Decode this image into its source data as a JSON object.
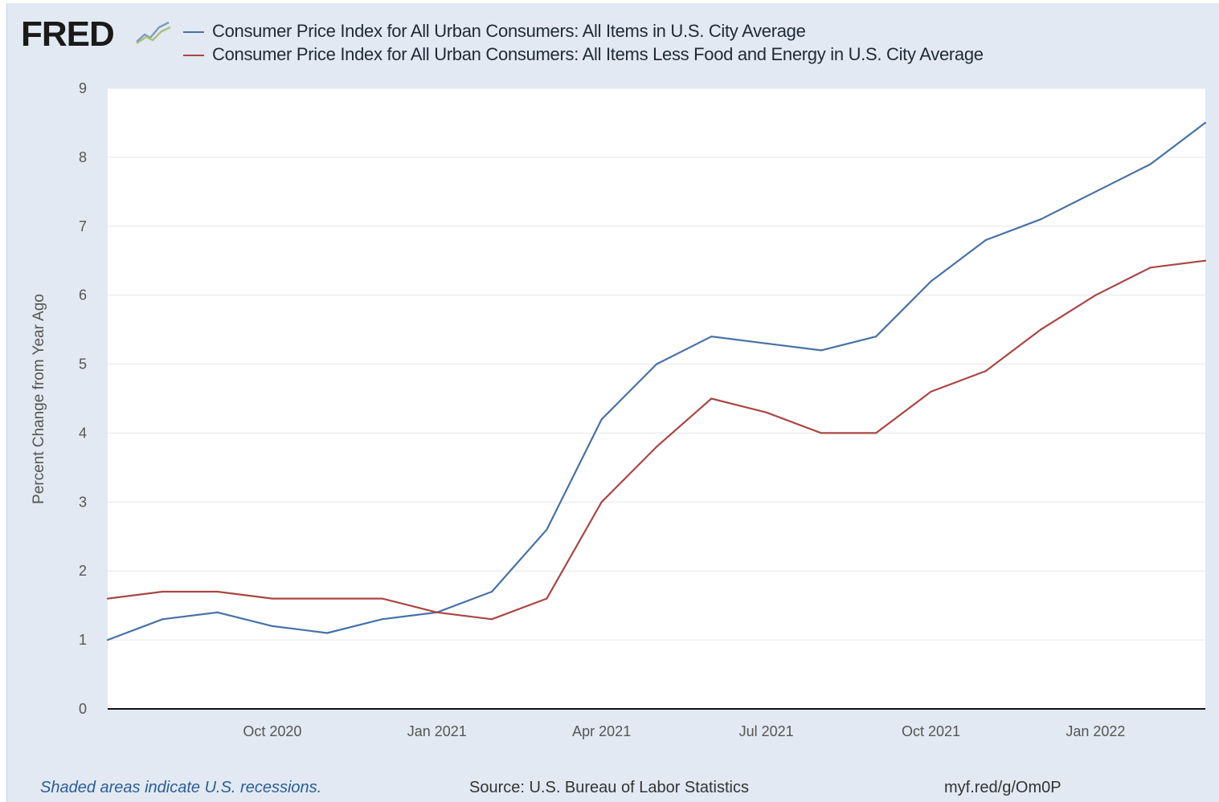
{
  "logo": {
    "text": "FRED",
    "icon": "chart-line-icon"
  },
  "chart_data": {
    "type": "line",
    "title": "",
    "xlabel": "",
    "ylabel": "Percent Change from Year Ago",
    "ylim": [
      0,
      9
    ],
    "xlim": [
      "2020-07",
      "2022-03"
    ],
    "yticks": [
      0,
      1,
      2,
      3,
      4,
      5,
      6,
      7,
      8,
      9
    ],
    "xticks": [
      {
        "label": "Oct 2020",
        "date": "2020-10"
      },
      {
        "label": "Jan 2021",
        "date": "2021-01"
      },
      {
        "label": "Apr 2021",
        "date": "2021-04"
      },
      {
        "label": "Jul 2021",
        "date": "2021-07"
      },
      {
        "label": "Oct 2021",
        "date": "2021-10"
      },
      {
        "label": "Jan 2022",
        "date": "2022-01"
      }
    ],
    "grid": true,
    "legend_position": "top",
    "x": [
      "2020-07",
      "2020-08",
      "2020-09",
      "2020-10",
      "2020-11",
      "2020-12",
      "2021-01",
      "2021-02",
      "2021-03",
      "2021-04",
      "2021-05",
      "2021-06",
      "2021-07",
      "2021-08",
      "2021-09",
      "2021-10",
      "2021-11",
      "2021-12",
      "2022-01",
      "2022-02",
      "2022-03"
    ],
    "series": [
      {
        "name": "Consumer Price Index for All Urban Consumers: All Items in U.S. City Average",
        "color": "#4572a7",
        "values": [
          1.0,
          1.3,
          1.4,
          1.2,
          1.1,
          1.3,
          1.4,
          1.7,
          2.6,
          4.2,
          5.0,
          5.4,
          5.3,
          5.2,
          5.4,
          6.2,
          6.8,
          7.1,
          7.5,
          7.9,
          8.5
        ]
      },
      {
        "name": "Consumer Price Index for All Urban Consumers: All Items Less Food and Energy in U.S. City Average",
        "color": "#aa4643",
        "values": [
          1.6,
          1.7,
          1.7,
          1.6,
          1.6,
          1.6,
          1.4,
          1.3,
          1.6,
          3.0,
          3.8,
          4.5,
          4.3,
          4.0,
          4.0,
          4.6,
          4.9,
          5.5,
          6.0,
          6.4,
          6.5
        ]
      }
    ]
  },
  "footer": {
    "note": "Shaded areas indicate U.S. recessions.",
    "source": "Source: U.S. Bureau of Labor Statistics",
    "link": "myf.red/g/Om0P"
  }
}
